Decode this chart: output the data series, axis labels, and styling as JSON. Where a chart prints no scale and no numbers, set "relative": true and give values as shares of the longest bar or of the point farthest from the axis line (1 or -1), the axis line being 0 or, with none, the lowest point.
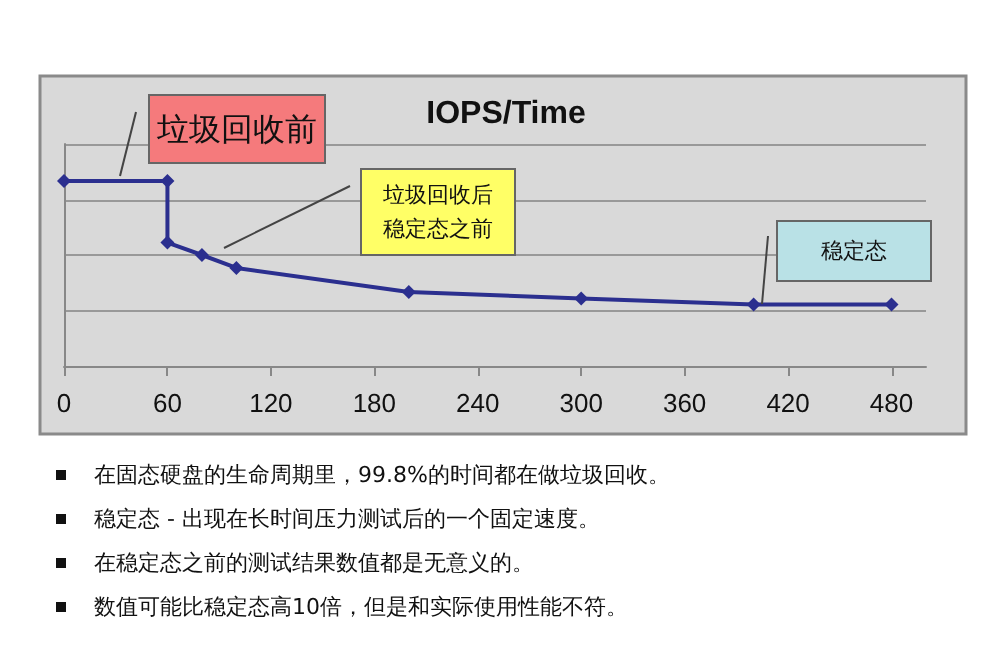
{
  "chart_data": {
    "type": "line",
    "title": "IOPS/Time",
    "relative": true,
    "x": [
      0,
      60,
      60,
      80,
      100,
      200,
      300,
      400,
      480
    ],
    "series": [
      {
        "color": "#2b2f8f",
        "values": [
          1,
          1,
          0.667,
          0.6,
          0.53,
          0.4,
          0.365,
          0.333,
          0.333
        ]
      }
    ],
    "xlim": [
      0,
      500
    ],
    "xticks": [
      0,
      60,
      120,
      180,
      240,
      300,
      360,
      420,
      480
    ],
    "grid": "y",
    "marker": "diamond",
    "line_style": "solid",
    "annotations": [
      "垃圾回收前",
      "垃圾回收后稳定态之前",
      "稳定态",
      "在固态硬盘的生命周期里，99.8%的时间都在做垃圾回收。",
      "稳定态 - 出现在长时间压力测试后的一个固定速度。",
      "在稳定态之前的测试结果数值都是无意义的。",
      "数值可能比稳定态高10倍，但是和实际使用性能不符。"
    ]
  }
}
